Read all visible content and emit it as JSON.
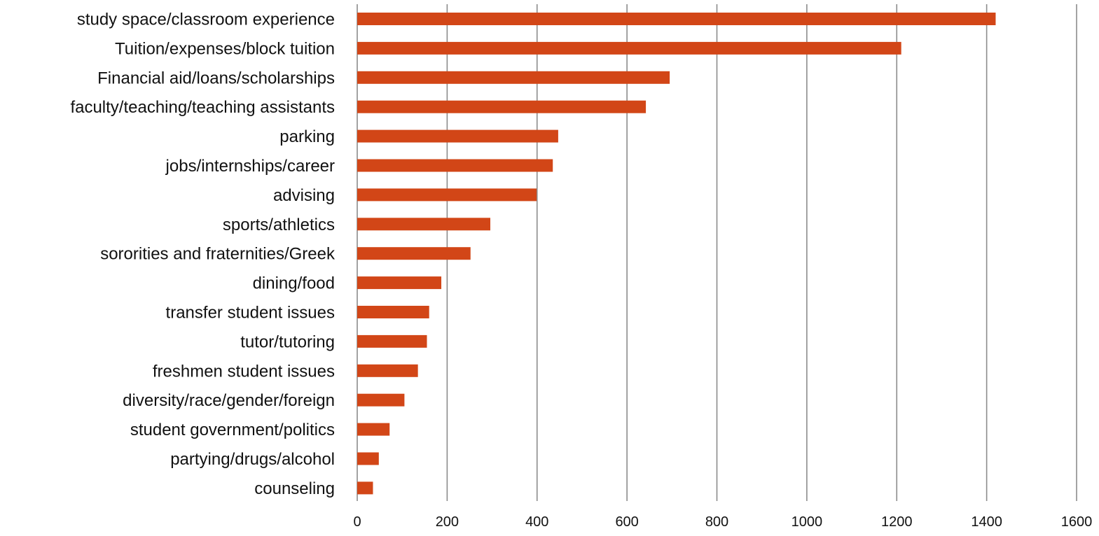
{
  "chart_data": {
    "type": "bar",
    "orientation": "horizontal",
    "categories": [
      "study space/classroom experience",
      "Tuition/expenses/block tuition",
      "Financial aid/loans/scholarships",
      "faculty/teaching/teaching assistants",
      "parking",
      "jobs/internships/career",
      "advising",
      "sports/athletics",
      "sororities and fraternities/Greek",
      "dining/food",
      "transfer student issues",
      "tutor/tutoring",
      "freshmen student issues",
      "diversity/race/gender/foreign",
      "student government/politics",
      "partying/drugs/alcohol",
      "counseling"
    ],
    "values": [
      1420,
      1210,
      695,
      642,
      447,
      435,
      399,
      296,
      252,
      187,
      160,
      155,
      135,
      105,
      72,
      48,
      35
    ],
    "xlim": [
      0,
      1600
    ],
    "x_ticks": [
      "0",
      "200",
      "400",
      "600",
      "800",
      "1000",
      "1200",
      "1400",
      "1600"
    ],
    "title": "",
    "xlabel": "",
    "ylabel": "",
    "grid": "vertical",
    "legend": "none",
    "colors": {
      "bar": "#d24617",
      "grid": "#8c8c8c",
      "text": "#111111",
      "background": "#ffffff"
    }
  }
}
